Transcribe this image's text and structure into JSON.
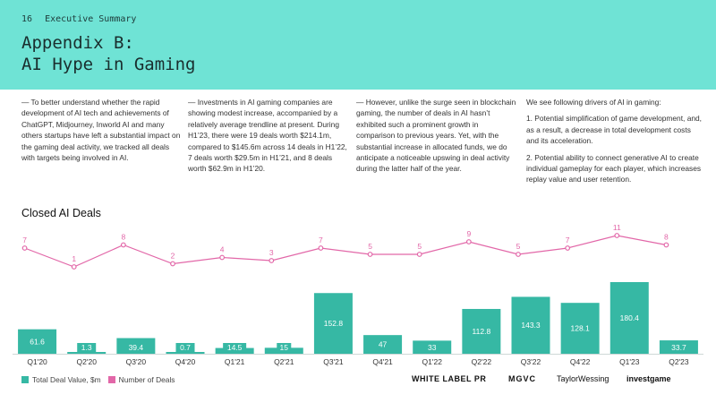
{
  "header": {
    "page_number": "16",
    "section": "Executive Summary",
    "title_line1": "Appendix B:",
    "title_line2": "AI Hype in Gaming",
    "background": "#6fe3d5"
  },
  "text_columns": [
    {
      "paragraphs": [
        "— To better understand whether the rapid development of AI tech and achievements of ChatGPT, Midjourney, Inworld AI and many others startups have left a substantial impact on the gaming deal activity, we tracked all deals with targets being involved in AI."
      ]
    },
    {
      "paragraphs": [
        "— Investments in AI gaming companies are showing modest increase, accompanied by a relatively average trendline at present. During H1’23, there were 19 deals worth $214.1m, compared to $145.6m across 14 deals in H1’22, 7 deals worth $29.5m in H1’21, and 8 deals worth $62.9m in H1’20."
      ]
    },
    {
      "paragraphs": [
        "— However, unlike the surge seen in blockchain gaming, the number of deals in AI hasn’t exhibited such a prominent growth in comparison to previous years. Yet, with the substantial increase in allocated funds, we do anticipate a noticeable upswing in deal activity during the latter half of the year."
      ]
    },
    {
      "paragraphs": [
        "We see following drivers of AI in gaming:",
        "1. Potential simplification of game development, and, as a result, a decrease in total development costs and its acceleration.",
        "2. Potential ability to connect generative AI to create individual gameplay for each player, which increases replay value and user retention."
      ]
    }
  ],
  "chart_title": "Closed AI Deals",
  "chart_data": {
    "type": "bar",
    "title": "Closed AI Deals",
    "categories": [
      "Q1'20",
      "Q2'20",
      "Q3'20",
      "Q4'20",
      "Q1'21",
      "Q2'21",
      "Q3'21",
      "Q4'21",
      "Q1'22",
      "Q2'22",
      "Q3'22",
      "Q4'22",
      "Q1'23",
      "Q2'23"
    ],
    "series": [
      {
        "name": "Total Deal Value, $m",
        "type": "bar",
        "color": "#36b8a4",
        "values": [
          61.6,
          1.3,
          39.4,
          0.7,
          14.5,
          15,
          152.8,
          47,
          33,
          112.8,
          143.3,
          128.1,
          180.4,
          33.7
        ],
        "labels": [
          "61.6",
          "1.3",
          "39.4",
          "0.7",
          "14.5",
          "15",
          "152.8",
          "47",
          "33",
          "112.8",
          "143.3",
          "128.1",
          "180.4",
          "33.7"
        ]
      },
      {
        "name": "Number of Deals",
        "type": "line",
        "color": "#e267a8",
        "values": [
          7,
          1,
          8,
          2,
          4,
          3,
          7,
          5,
          5,
          9,
          5,
          7,
          11,
          8
        ],
        "labels": [
          "7",
          "1",
          "8",
          "2",
          "4",
          "3",
          "7",
          "5",
          "5",
          "9",
          "5",
          "7",
          "11",
          "8"
        ]
      }
    ],
    "legend": "bottom-left"
  },
  "logos": [
    "WHITE LABEL PR",
    "MGVC",
    "TaylorWessing",
    "investgame"
  ],
  "colors": {
    "bar": "#36b8a4",
    "line": "#e267a8",
    "header": "#6fe3d5"
  }
}
